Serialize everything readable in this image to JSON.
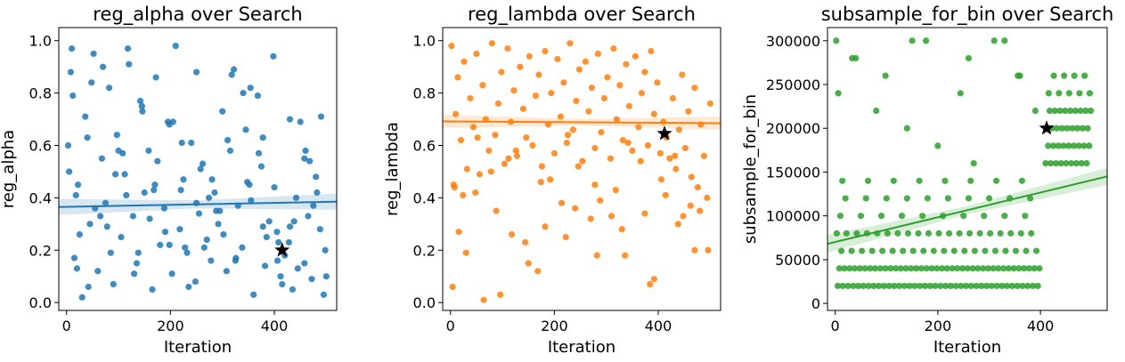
{
  "chart_data": [
    {
      "type": "scatter",
      "title": "reg_alpha over Search",
      "xlabel": "Iteration",
      "ylabel": "reg_alpha",
      "xlim": [
        -15,
        520
      ],
      "ylim": [
        -0.03,
        1.05
      ],
      "xticks": [
        0,
        200,
        400
      ],
      "xtick_labels": [
        "0",
        "200",
        "400"
      ],
      "yticks": [
        0.0,
        0.2,
        0.4,
        0.6,
        0.8,
        1.0
      ],
      "ytick_labels": [
        "0.0",
        "0.2",
        "0.4",
        "0.6",
        "0.8",
        "1.0"
      ],
      "grid": false,
      "color": "#1f77b4",
      "regression": {
        "x": [
          -15,
          520
        ],
        "y": [
          0.365,
          0.385
        ],
        "ci_halfwidth": 0.022
      },
      "best": {
        "x": 415,
        "y": 0.2,
        "marker": "star"
      },
      "points": {
        "x": [
          3,
          8,
          15,
          22,
          30,
          36,
          45,
          52,
          60,
          68,
          75,
          82,
          90,
          97,
          105,
          112,
          120,
          128,
          135,
          142,
          150,
          158,
          165,
          172,
          180,
          188,
          195,
          203,
          210,
          218,
          225,
          232,
          240,
          248,
          255,
          262,
          270,
          278,
          285,
          292,
          300,
          308,
          315,
          322,
          330,
          338,
          345,
          352,
          360,
          368,
          375,
          382,
          390,
          398,
          405,
          412,
          420,
          428,
          435,
          442,
          450,
          458,
          465,
          472,
          480,
          488,
          495,
          5,
          12,
          25,
          40,
          55,
          70,
          85,
          100,
          115,
          130,
          145,
          160,
          175,
          190,
          205,
          220,
          235,
          250,
          265,
          280,
          295,
          310,
          325,
          340,
          355,
          370,
          385,
          400,
          415,
          430,
          445,
          460,
          475,
          490,
          500,
          18,
          48,
          78,
          108,
          138,
          168,
          198,
          228,
          258,
          288,
          318,
          348,
          378,
          408,
          438,
          468,
          498,
          10,
          42,
          94,
          146,
          198,
          250,
          302,
          354,
          406,
          458,
          20,
          65,
          118,
          170,
          222,
          274,
          326,
          378,
          430,
          482
        ],
        "y": [
          0.6,
          0.88,
          0.17,
          0.45,
          0.02,
          0.71,
          0.3,
          0.95,
          0.12,
          0.55,
          0.38,
          0.82,
          0.07,
          0.64,
          0.25,
          0.49,
          0.91,
          0.33,
          0.15,
          0.77,
          0.42,
          0.58,
          0.05,
          0.86,
          0.22,
          0.36,
          0.69,
          0.11,
          0.98,
          0.28,
          0.47,
          0.19,
          0.61,
          0.08,
          0.34,
          0.53,
          0.24,
          0.16,
          0.42,
          0.3,
          0.73,
          0.12,
          0.58,
          0.89,
          0.37,
          0.21,
          0.66,
          0.45,
          0.03,
          0.79,
          0.52,
          0.14,
          0.31,
          0.94,
          0.27,
          0.1,
          0.18,
          0.23,
          0.05,
          0.4,
          0.69,
          0.15,
          0.33,
          0.09,
          0.48,
          0.28,
          0.03,
          0.5,
          0.79,
          0.26,
          0.63,
          0.36,
          0.9,
          0.19,
          0.58,
          0.41,
          0.11,
          0.75,
          0.32,
          0.54,
          0.27,
          0.69,
          0.43,
          0.06,
          0.88,
          0.21,
          0.47,
          0.35,
          0.62,
          0.16,
          0.8,
          0.39,
          0.57,
          0.25,
          0.44,
          0.07,
          0.29,
          0.13,
          0.58,
          0.37,
          0.71,
          0.1,
          0.41,
          0.84,
          0.29,
          0.57,
          0.19,
          0.43,
          0.68,
          0.21,
          0.51,
          0.35,
          0.87,
          0.46,
          0.63,
          0.23,
          0.31,
          0.54,
          0.2,
          0.97,
          0.06,
          0.49,
          0.73,
          0.22,
          0.38,
          0.26,
          0.82,
          0.16,
          0.55,
          0.13,
          0.33,
          0.97,
          0.45,
          0.61,
          0.4,
          0.17,
          0.29,
          0.7,
          0.42
        ]
      }
    },
    {
      "type": "scatter",
      "title": "reg_lambda over Search",
      "xlabel": "Iteration",
      "ylabel": "reg_lambda",
      "xlim": [
        -15,
        520
      ],
      "ylim": [
        -0.03,
        1.05
      ],
      "xticks": [
        0,
        200,
        400
      ],
      "xtick_labels": [
        "0",
        "200",
        "400"
      ],
      "yticks": [
        0.0,
        0.2,
        0.4,
        0.6,
        0.8,
        1.0
      ],
      "ytick_labels": [
        "0.0",
        "0.2",
        "0.4",
        "0.6",
        "0.8",
        "1.0"
      ],
      "grid": false,
      "color": "#ff7f0e",
      "regression": {
        "x": [
          -15,
          520
        ],
        "y": [
          0.692,
          0.685
        ],
        "ci_halfwidth": 0.018
      },
      "best": {
        "x": 412,
        "y": 0.645,
        "marker": "star"
      },
      "points": {
        "x": [
          2,
          6,
          10,
          14,
          20,
          26,
          32,
          38,
          44,
          50,
          56,
          62,
          68,
          74,
          80,
          86,
          92,
          98,
          104,
          110,
          116,
          122,
          128,
          134,
          140,
          146,
          152,
          158,
          164,
          170,
          176,
          182,
          188,
          194,
          200,
          206,
          212,
          218,
          224,
          230,
          236,
          242,
          248,
          254,
          260,
          266,
          272,
          278,
          284,
          290,
          296,
          302,
          308,
          314,
          320,
          326,
          332,
          338,
          344,
          350,
          356,
          362,
          368,
          374,
          380,
          386,
          392,
          398,
          404,
          410,
          416,
          422,
          428,
          434,
          440,
          446,
          452,
          458,
          464,
          470,
          476,
          482,
          488,
          494,
          500,
          4,
          24,
          52,
          88,
          118,
          150,
          182,
          214,
          246,
          278,
          310,
          342,
          374,
          406,
          438,
          470,
          16,
          48,
          96,
          144,
          192,
          240,
          288,
          336,
          384,
          432,
          480,
          30,
          78,
          126,
          174,
          222,
          270,
          318,
          366,
          414,
          462,
          8,
          64,
          112,
          168,
          226,
          282,
          330,
          392,
          448,
          496
        ],
        "y": [
          0.98,
          0.45,
          0.72,
          0.86,
          0.62,
          0.92,
          0.51,
          0.78,
          0.67,
          0.95,
          0.49,
          0.83,
          0.7,
          0.58,
          0.99,
          0.64,
          0.76,
          0.88,
          0.53,
          0.97,
          0.69,
          0.81,
          0.56,
          0.9,
          0.74,
          0.63,
          0.94,
          0.6,
          0.79,
          0.87,
          0.52,
          0.96,
          0.68,
          0.8,
          0.57,
          0.93,
          0.71,
          0.84,
          0.61,
          0.99,
          0.66,
          0.77,
          0.89,
          0.54,
          0.92,
          0.73,
          0.82,
          0.59,
          0.95,
          0.65,
          0.78,
          0.86,
          0.55,
          0.97,
          0.7,
          0.83,
          0.62,
          0.91,
          0.75,
          0.58,
          0.94,
          0.67,
          0.8,
          0.88,
          0.6,
          0.96,
          0.72,
          0.84,
          0.57,
          0.69,
          0.63,
          0.55,
          0.78,
          0.51,
          0.66,
          0.87,
          0.59,
          0.73,
          0.48,
          0.82,
          0.44,
          0.68,
          0.56,
          0.4,
          0.76,
          0.06,
          0.41,
          0.63,
          0.35,
          0.26,
          0.15,
          0.29,
          0.38,
          0.52,
          0.45,
          0.33,
          0.61,
          0.34,
          0.47,
          0.3,
          0.2,
          0.27,
          0.42,
          0.03,
          0.23,
          0.47,
          0.36,
          0.39,
          0.18,
          0.07,
          0.56,
          0.35,
          0.19,
          0.5,
          0.58,
          0.46,
          0.25,
          0.32,
          0.43,
          0.54,
          0.41,
          0.37,
          0.44,
          0.01,
          0.55,
          0.12,
          0.64,
          0.18,
          0.28,
          0.09,
          0.33,
          0.2
        ]
      }
    },
    {
      "type": "scatter",
      "title": "subsample_for_bin over Search",
      "xlabel": "Iteration",
      "ylabel": "subsample_for_bin",
      "xlim": [
        -15,
        530
      ],
      "ylim": [
        -8000,
        315000
      ],
      "xticks": [
        0,
        200,
        400
      ],
      "xtick_labels": [
        "0",
        "200",
        "400"
      ],
      "yticks": [
        0,
        50000,
        100000,
        150000,
        200000,
        250000,
        300000
      ],
      "ytick_labels": [
        "0",
        "50000",
        "100000",
        "150000",
        "200000",
        "250000",
        "300000"
      ],
      "grid": false,
      "color": "#2ca02c",
      "regression": {
        "x": [
          -15,
          530
        ],
        "y": [
          68000,
          145000
        ],
        "ci_halfwidth": 7000
      },
      "best": {
        "x": 412,
        "y": 200000,
        "marker": "star"
      },
      "points": {
        "x": [
          5,
          15,
          25,
          35,
          45,
          55,
          65,
          75,
          85,
          95,
          105,
          115,
          125,
          135,
          145,
          155,
          165,
          175,
          185,
          195,
          205,
          215,
          225,
          235,
          245,
          255,
          265,
          275,
          285,
          295,
          305,
          315,
          325,
          335,
          345,
          355,
          365,
          375,
          385,
          395,
          8,
          18,
          28,
          38,
          48,
          58,
          68,
          78,
          88,
          98,
          108,
          118,
          128,
          138,
          148,
          158,
          168,
          178,
          188,
          198,
          208,
          218,
          228,
          238,
          248,
          258,
          268,
          278,
          288,
          298,
          308,
          318,
          328,
          338,
          348,
          358,
          368,
          378,
          388,
          398,
          12,
          32,
          52,
          72,
          92,
          112,
          132,
          152,
          172,
          192,
          212,
          232,
          252,
          272,
          292,
          312,
          332,
          352,
          372,
          392,
          3,
          22,
          42,
          62,
          82,
          102,
          122,
          142,
          162,
          182,
          202,
          222,
          242,
          262,
          282,
          302,
          322,
          342,
          362,
          382,
          10,
          50,
          90,
          130,
          170,
          210,
          250,
          290,
          330,
          370,
          20,
          60,
          100,
          140,
          180,
          220,
          260,
          300,
          340,
          380,
          14,
          64,
          114,
          164,
          214,
          264,
          314,
          364,
          410,
          420,
          430,
          440,
          450,
          460,
          470,
          480,
          490,
          415,
          425,
          435,
          445,
          455,
          465,
          475,
          485,
          495,
          412,
          422,
          432,
          442,
          452,
          462,
          472,
          482,
          492,
          418,
          428,
          438,
          448,
          458,
          468,
          478,
          488,
          498,
          416,
          436,
          456,
          476,
          496,
          426,
          446,
          466,
          486,
          2,
          40,
          98,
          150,
          260,
          310,
          360,
          6,
          80,
          140,
          200,
          270,
          330,
          390,
          33,
          177,
          244,
          356
        ],
        "y": [
          20000,
          20000,
          20000,
          20000,
          20000,
          20000,
          20000,
          20000,
          20000,
          20000,
          20000,
          20000,
          20000,
          20000,
          20000,
          20000,
          20000,
          20000,
          20000,
          20000,
          20000,
          20000,
          20000,
          20000,
          20000,
          20000,
          20000,
          20000,
          20000,
          20000,
          20000,
          20000,
          20000,
          20000,
          20000,
          20000,
          20000,
          20000,
          20000,
          20000,
          40000,
          40000,
          40000,
          40000,
          40000,
          40000,
          40000,
          40000,
          40000,
          40000,
          40000,
          40000,
          40000,
          40000,
          40000,
          40000,
          40000,
          40000,
          40000,
          40000,
          40000,
          40000,
          40000,
          40000,
          40000,
          40000,
          40000,
          40000,
          40000,
          40000,
          40000,
          40000,
          40000,
          40000,
          40000,
          40000,
          40000,
          40000,
          40000,
          40000,
          60000,
          60000,
          60000,
          60000,
          60000,
          60000,
          60000,
          60000,
          60000,
          60000,
          60000,
          60000,
          60000,
          60000,
          60000,
          60000,
          60000,
          60000,
          60000,
          60000,
          80000,
          80000,
          80000,
          80000,
          80000,
          80000,
          80000,
          80000,
          80000,
          80000,
          80000,
          80000,
          80000,
          80000,
          80000,
          80000,
          80000,
          80000,
          80000,
          80000,
          100000,
          100000,
          100000,
          100000,
          100000,
          100000,
          100000,
          100000,
          100000,
          100000,
          120000,
          120000,
          120000,
          120000,
          120000,
          120000,
          120000,
          120000,
          120000,
          120000,
          140000,
          140000,
          140000,
          140000,
          140000,
          140000,
          140000,
          140000,
          160000,
          160000,
          160000,
          160000,
          160000,
          160000,
          160000,
          160000,
          160000,
          180000,
          180000,
          180000,
          180000,
          180000,
          180000,
          180000,
          180000,
          180000,
          200000,
          200000,
          200000,
          200000,
          200000,
          200000,
          200000,
          200000,
          200000,
          220000,
          220000,
          220000,
          220000,
          220000,
          220000,
          220000,
          220000,
          220000,
          240000,
          240000,
          240000,
          240000,
          240000,
          260000,
          260000,
          260000,
          260000,
          300000,
          280000,
          260000,
          300000,
          280000,
          300000,
          260000,
          240000,
          220000,
          200000,
          180000,
          160000,
          300000,
          220000,
          280000,
          300000,
          240000,
          260000
        ]
      }
    }
  ]
}
